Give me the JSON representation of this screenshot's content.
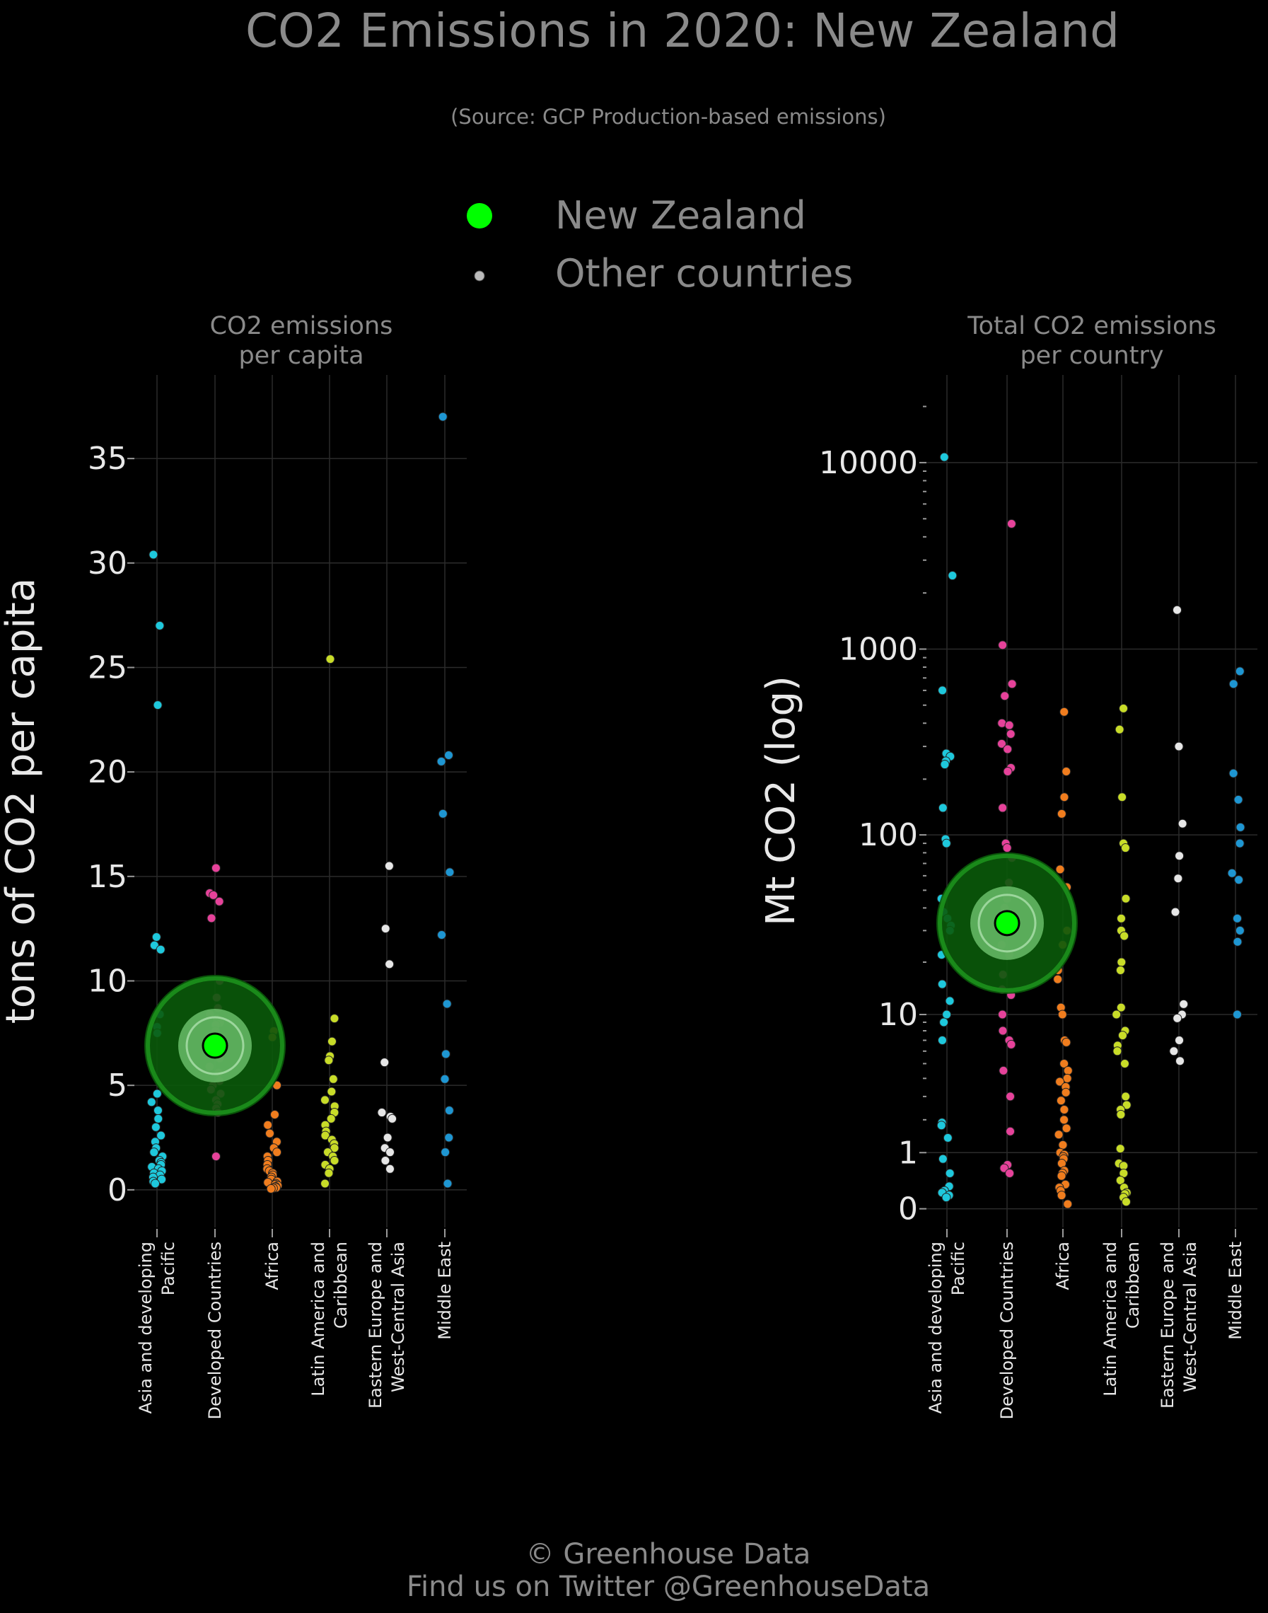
{
  "title": "CO2 Emissions in 2020: New Zealand",
  "subtitle": "(Source: GCP Production-based emissions)",
  "legend": {
    "highlight_label": "New Zealand",
    "other_label": "Other countries",
    "highlight_color": "#00ff00",
    "other_color": "#bbbbbb"
  },
  "footer": {
    "line1": "© Greenhouse Data",
    "line2": "Find us on Twitter @GreenhouseData"
  },
  "region_colors": {
    "Asia and developing Pacific": "#1ec8dc",
    "Developed Countries": "#e6429a",
    "Africa": "#f07d1e",
    "Latin America and Caribbean": "#c8dc28",
    "Eastern Europe and West-Central Asia": "#e6e6e6",
    "Middle East": "#1e96d2"
  },
  "chart_data": [
    {
      "type": "scatter",
      "panel_title": [
        "CO2 emissions",
        "per capita"
      ],
      "ylabel": "tons of CO2 per capita",
      "yscale": "linear",
      "ylim": [
        -1.8,
        39
      ],
      "yticks": [
        0,
        5,
        10,
        15,
        20,
        25,
        30,
        35
      ],
      "ytick_labels": [
        "0",
        "5",
        "10",
        "15",
        "20",
        "25",
        "30",
        "35"
      ],
      "grid": true,
      "categories": [
        "Asia and developing Pacific",
        "Developed Countries",
        "Africa",
        "Latin America and Caribbean",
        "Eastern Europe and West-Central Asia",
        "Middle East"
      ],
      "category_labels": [
        [
          "Asia and developing",
          "Pacific"
        ],
        [
          "Developed Countries"
        ],
        [
          "Africa"
        ],
        [
          "Latin America and",
          "Caribbean"
        ],
        [
          "Eastern Europe and",
          "West-Central Asia"
        ],
        [
          "Middle East"
        ]
      ],
      "highlight": {
        "name": "New Zealand",
        "category": "Developed Countries",
        "value": 6.9
      },
      "series": [
        {
          "name": "Asia and developing Pacific",
          "values": [
            30.4,
            27.0,
            23.2,
            12.1,
            11.7,
            11.5,
            8.4,
            7.8,
            7.5,
            4.6,
            4.2,
            3.8,
            3.4,
            3.0,
            2.6,
            2.3,
            2.0,
            1.8,
            1.6,
            1.4,
            1.3,
            1.2,
            1.1,
            1.0,
            0.9,
            0.8,
            0.7,
            0.6,
            0.5,
            0.4,
            0.3
          ]
        },
        {
          "name": "Developed Countries",
          "values": [
            15.4,
            14.2,
            14.1,
            13.8,
            13.0,
            10.0,
            9.2,
            8.7,
            8.4,
            8.2,
            8.0,
            7.9,
            7.6,
            7.4,
            7.1,
            6.6,
            6.3,
            5.9,
            5.6,
            5.2,
            5.0,
            4.8,
            4.6,
            4.3,
            4.1,
            3.9,
            3.7,
            1.6
          ]
        },
        {
          "name": "Africa",
          "values": [
            7.6,
            7.3,
            5.0,
            3.6,
            3.1,
            2.7,
            2.3,
            2.0,
            1.8,
            1.6,
            1.4,
            1.2,
            1.0,
            0.9,
            0.8,
            0.7,
            0.6,
            0.5,
            0.4,
            0.35,
            0.3,
            0.25,
            0.2,
            0.15,
            0.1,
            0.08,
            0.05
          ]
        },
        {
          "name": "Latin America and Caribbean",
          "values": [
            25.4,
            8.2,
            7.1,
            6.4,
            6.2,
            5.3,
            4.7,
            4.3,
            4.0,
            3.7,
            3.4,
            3.1,
            2.8,
            2.6,
            2.4,
            2.2,
            2.0,
            1.8,
            1.6,
            1.4,
            1.2,
            1.0,
            0.8,
            0.3
          ]
        },
        {
          "name": "Eastern Europe and West-Central Asia",
          "values": [
            15.5,
            12.5,
            10.8,
            6.1,
            3.7,
            3.5,
            3.4,
            2.5,
            2.0,
            1.8,
            1.4,
            1.0
          ]
        },
        {
          "name": "Middle East",
          "values": [
            37.0,
            20.8,
            20.5,
            18.0,
            15.2,
            12.2,
            8.9,
            6.5,
            5.3,
            3.8,
            2.5,
            1.8,
            0.3
          ]
        }
      ]
    },
    {
      "type": "scatter",
      "panel_title": [
        "Total CO2 emissions",
        "per country"
      ],
      "ylabel": "Mt CO2 (log)",
      "yscale": "log (log10 of value + 1)",
      "ylim": [
        -0.1,
        4.47
      ],
      "yticks": [
        0,
        1,
        10,
        100,
        1000,
        10000
      ],
      "ytick_labels": [
        "0",
        "1",
        "10",
        "100",
        "1000",
        "10000"
      ],
      "grid": true,
      "categories": [
        "Asia and developing Pacific",
        "Developed Countries",
        "Africa",
        "Latin America and Caribbean",
        "Eastern Europe and West-Central Asia",
        "Middle East"
      ],
      "category_labels": [
        [
          "Asia and developing",
          "Pacific"
        ],
        [
          "Developed Countries"
        ],
        [
          "Africa"
        ],
        [
          "Latin America and",
          "Caribbean"
        ],
        [
          "Eastern Europe and",
          "West-Central Asia"
        ],
        [
          "Middle East"
        ]
      ],
      "highlight": {
        "name": "New Zealand",
        "category": "Developed Countries",
        "value": 33
      },
      "series": [
        {
          "name": "Asia and developing Pacific",
          "values": [
            10700,
            2480,
            600,
            275,
            265,
            250,
            240,
            140,
            95,
            90,
            45,
            38,
            35,
            32,
            30,
            22,
            15,
            12,
            10,
            9,
            7,
            1.9,
            1.8,
            1.4,
            0.85,
            0.55,
            0.32,
            0.25,
            0.22,
            0.18,
            0.15
          ]
        },
        {
          "name": "Developed Countries",
          "values": [
            4700,
            1050,
            650,
            560,
            400,
            390,
            350,
            310,
            290,
            230,
            220,
            140,
            90,
            85,
            75,
            55,
            45,
            40,
            33,
            25,
            22,
            17,
            14,
            13,
            10,
            8,
            7,
            6.6,
            4.5,
            3,
            1.6,
            0.72,
            0.65,
            0.55
          ]
        },
        {
          "name": "Africa",
          "values": [
            460,
            220,
            160,
            130,
            65,
            52,
            30,
            25,
            18,
            16,
            11,
            10,
            7,
            6.8,
            5,
            4.5,
            4,
            3.8,
            3.5,
            3.2,
            2.8,
            2.4,
            2,
            1.7,
            1.5,
            1.2,
            1,
            0.95,
            0.9,
            0.85,
            0.75,
            0.6,
            0.55,
            0.5,
            0.35,
            0.3,
            0.25,
            0.18,
            0.06
          ]
        },
        {
          "name": "Latin America and Caribbean",
          "values": [
            480,
            370,
            160,
            90,
            85,
            45,
            35,
            30,
            28,
            20,
            18,
            11,
            10,
            8,
            7.5,
            6.5,
            6,
            5,
            3,
            2.6,
            2.4,
            2.2,
            1.1,
            0.75,
            0.7,
            0.55,
            0.42,
            0.3,
            0.22,
            0.2,
            0.15,
            0.09
          ]
        },
        {
          "name": "Eastern Europe and West-Central Asia",
          "values": [
            1620,
            300,
            115,
            77,
            58,
            38,
            11.5,
            10,
            9.5,
            7,
            6,
            5.2
          ]
        },
        {
          "name": "Middle East",
          "values": [
            760,
            650,
            215,
            155,
            110,
            90,
            62,
            57,
            35,
            30,
            26,
            10
          ]
        }
      ]
    }
  ]
}
